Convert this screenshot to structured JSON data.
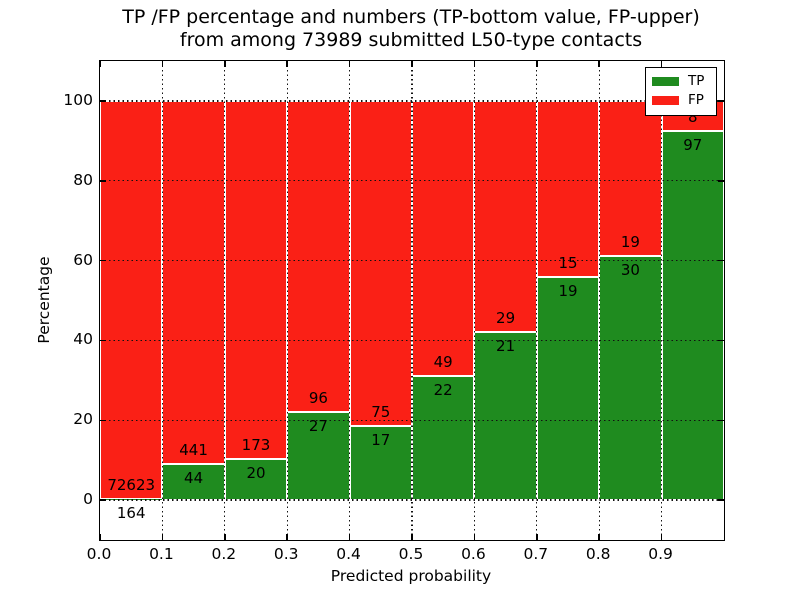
{
  "figure": {
    "title_line1": "TP /FP percentage and numbers (TP-bottom value, FP-upper)",
    "title_line2": "from among 73989 submitted L50-type contacts"
  },
  "chart_data": {
    "type": "bar",
    "stacked": true,
    "normalized": "each bin scaled to 100%",
    "title": "TP /FP percentage and numbers (TP-bottom value, FP-upper)\nfrom among 73989 submitted L50-type contacts",
    "xlabel": "Predicted probability",
    "ylabel": "Percentage",
    "categories": [
      "0.0",
      "0.1",
      "0.2",
      "0.3",
      "0.4",
      "0.5",
      "0.6",
      "0.7",
      "0.8",
      "0.9"
    ],
    "bin_width": 0.1,
    "series": [
      {
        "name": "TP",
        "color": "#1f8b1f",
        "counts": [
          164,
          44,
          20,
          27,
          17,
          22,
          21,
          19,
          30,
          97
        ]
      },
      {
        "name": "FP",
        "color": "#fa2016",
        "counts": [
          72623,
          441,
          173,
          96,
          75,
          49,
          29,
          15,
          19,
          8
        ]
      }
    ],
    "total_contacts": 73989,
    "xticks": [
      "0.0",
      "0.1",
      "0.2",
      "0.3",
      "0.4",
      "0.5",
      "0.6",
      "0.7",
      "0.8",
      "0.9"
    ],
    "yticks": [
      0,
      20,
      40,
      60,
      80,
      100
    ],
    "xlim": [
      0.0,
      1.0
    ],
    "ylim": [
      -10,
      110
    ],
    "grid": "dotted",
    "legend_position": "upper right",
    "colors": {
      "tp_green": "#1f8b1f",
      "fp_red": "#fa2016",
      "grid": "#111111",
      "background": "#ffffff"
    }
  }
}
